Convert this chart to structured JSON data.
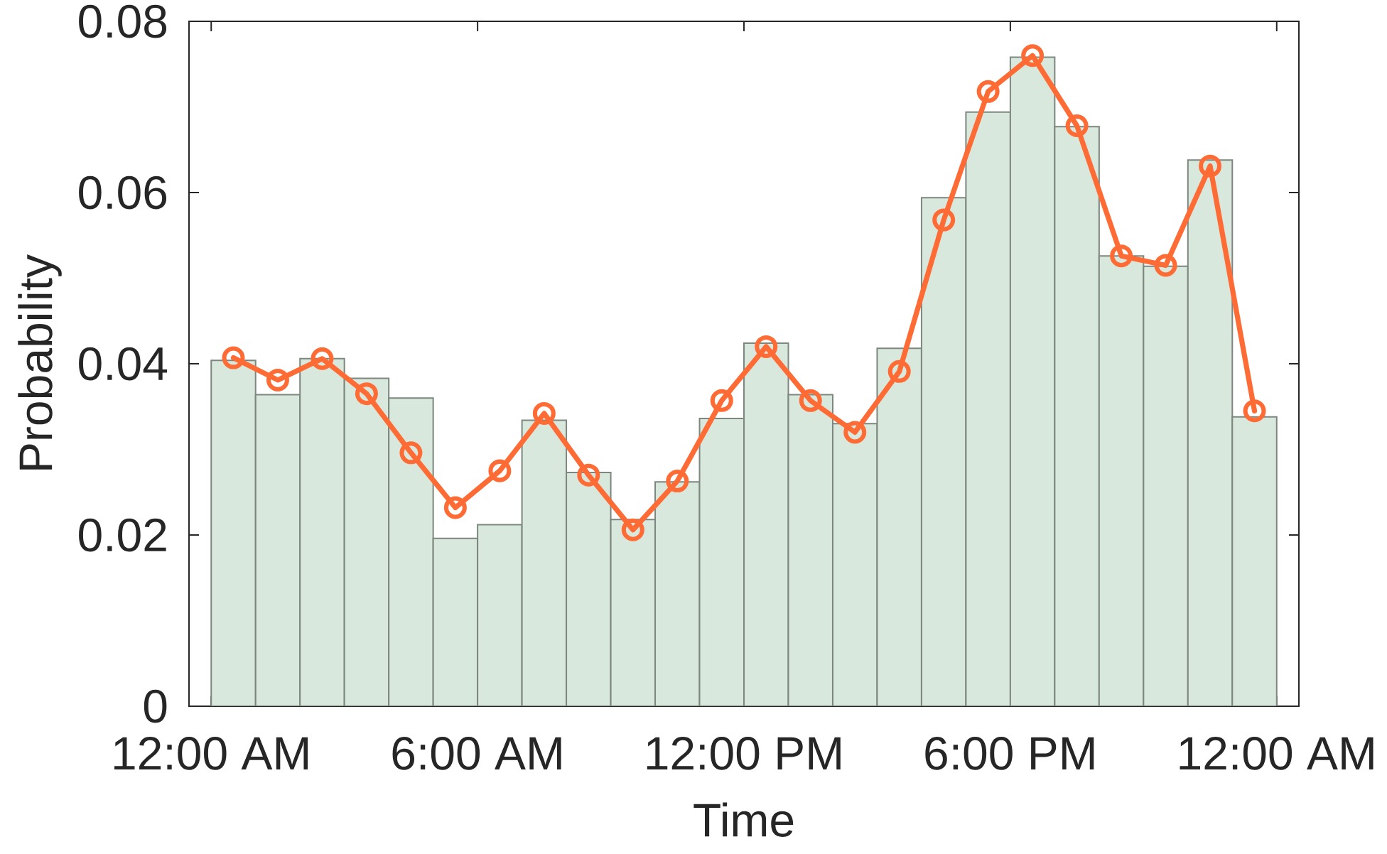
{
  "chart_data": {
    "type": "histogram",
    "xlabel": "Time",
    "ylabel": "Probability",
    "bins": [
      0,
      1,
      2,
      3,
      4,
      5,
      6,
      7,
      8,
      9,
      10,
      11,
      12,
      13,
      14,
      15,
      16,
      17,
      18,
      19,
      20,
      21,
      22,
      23,
      24
    ],
    "series": [
      {
        "color": "#d8e8dc",
        "values": [
          0.0404,
          0.0364,
          0.0406,
          0.0383,
          0.036,
          0.0196,
          0.0212,
          0.0334,
          0.0273,
          0.0218,
          0.0262,
          0.0336,
          0.0424,
          0.0364,
          0.033,
          0.0418,
          0.0594,
          0.0694,
          0.0758,
          0.0677,
          0.0526,
          0.0514,
          0.0638,
          0.0338
        ]
      },
      {
        "type": "line",
        "color": "#ff6b35",
        "marker": "circle",
        "x": [
          0.5,
          1.5,
          2.5,
          3.5,
          4.5,
          5.5,
          6.5,
          7.5,
          8.5,
          9.5,
          10.5,
          11.5,
          12.5,
          13.5,
          14.5,
          15.5,
          16.5,
          17.5,
          18.5,
          19.5,
          20.5,
          21.5,
          22.5,
          23.5
        ],
        "values": [
          0.0407,
          0.0381,
          0.0406,
          0.0365,
          0.0296,
          0.0232,
          0.0275,
          0.0342,
          0.027,
          0.0206,
          0.0263,
          0.0357,
          0.042,
          0.0357,
          0.032,
          0.0391,
          0.0568,
          0.0718,
          0.076,
          0.0678,
          0.0526,
          0.0515,
          0.0631,
          0.0345
        ]
      }
    ],
    "xlim": [
      -0.5,
      24.5
    ],
    "ylim": [
      0,
      0.08
    ],
    "xticks": [
      {
        "value": 0,
        "label": "12:00 AM"
      },
      {
        "value": 6,
        "label": "6:00 AM"
      },
      {
        "value": 12,
        "label": "12:00 PM"
      },
      {
        "value": 18,
        "label": "6:00 PM"
      },
      {
        "value": 24,
        "label": "12:00 AM"
      }
    ],
    "yticks": [
      0,
      0.02,
      0.04,
      0.06,
      0.08
    ]
  }
}
